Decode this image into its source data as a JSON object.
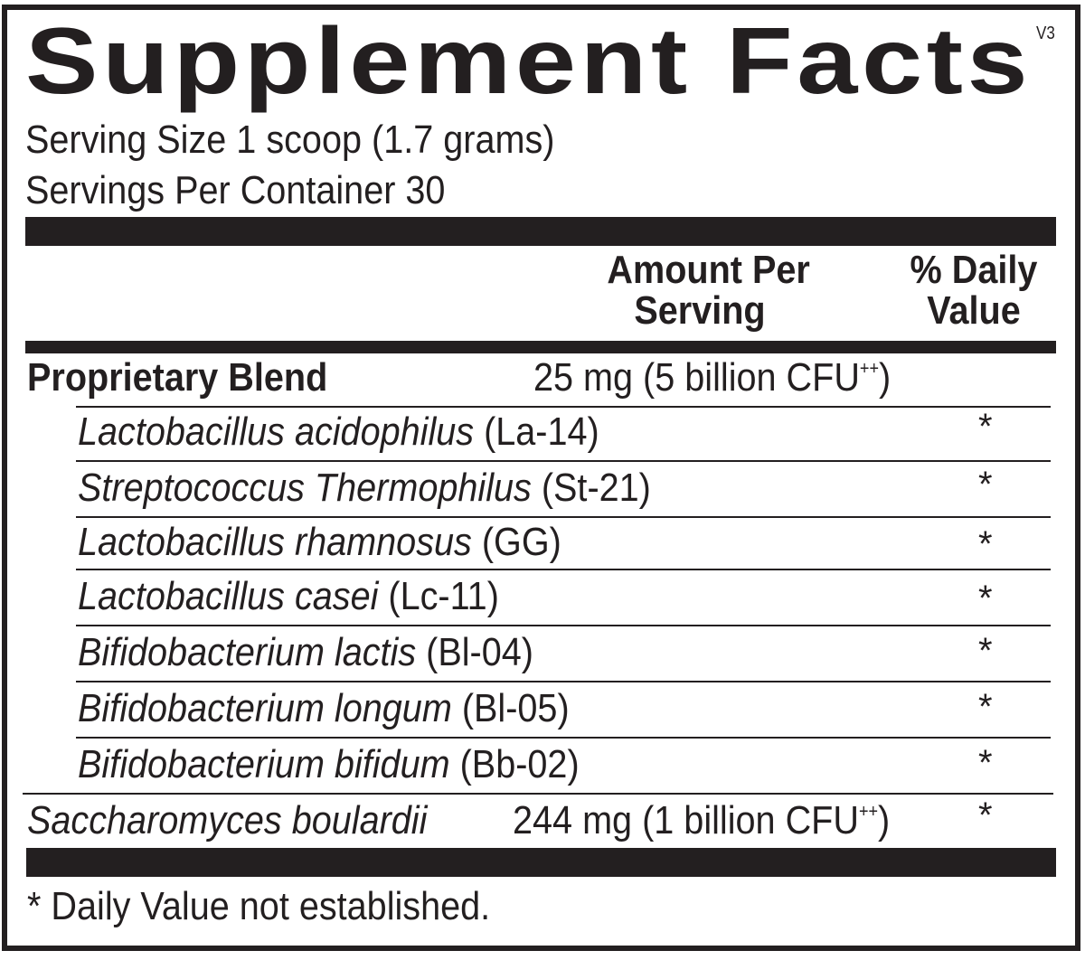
{
  "title": "Supplement Facts",
  "version": "V3",
  "serving_size": "Serving Size 1 scoop (1.7 grams)",
  "servings_per_container": "Servings Per Container 30",
  "headers": {
    "amount_line1": "Amount Per",
    "amount_line2": "Serving",
    "dv_line1": "% Daily",
    "dv_line2": "Value"
  },
  "blend": {
    "name": "Proprietary Blend",
    "amount": "25 mg (5 billion CFU",
    "sup": "++",
    "close": ")"
  },
  "ingredients": [
    {
      "name": "Lactobacillus acidophilus",
      "strain": " (La-14)",
      "dv": "*"
    },
    {
      "name": "Streptococcus Thermophilus",
      "strain": " (St-21)",
      "dv": "*"
    },
    {
      "name": "Lactobacillus rhamnosus",
      "strain": " (GG)",
      "dv": "*"
    },
    {
      "name": "Lactobacillus casei",
      "strain": " (Lc-11)",
      "dv": "*"
    },
    {
      "name": "Bifidobacterium lactis",
      "strain": " (Bl-04)",
      "dv": "*"
    },
    {
      "name": "Bifidobacterium longum",
      "strain": " (Bl-05)",
      "dv": "*"
    },
    {
      "name": "Bifidobacterium bifidum",
      "strain": " (Bb-02)",
      "dv": "*"
    }
  ],
  "saccharomyces": {
    "name": "Saccharomyces boulardii",
    "amount": "244 mg (1 billion CFU",
    "sup": "++",
    "close": ")",
    "dv": "*"
  },
  "footnote": "* Daily Value not established."
}
